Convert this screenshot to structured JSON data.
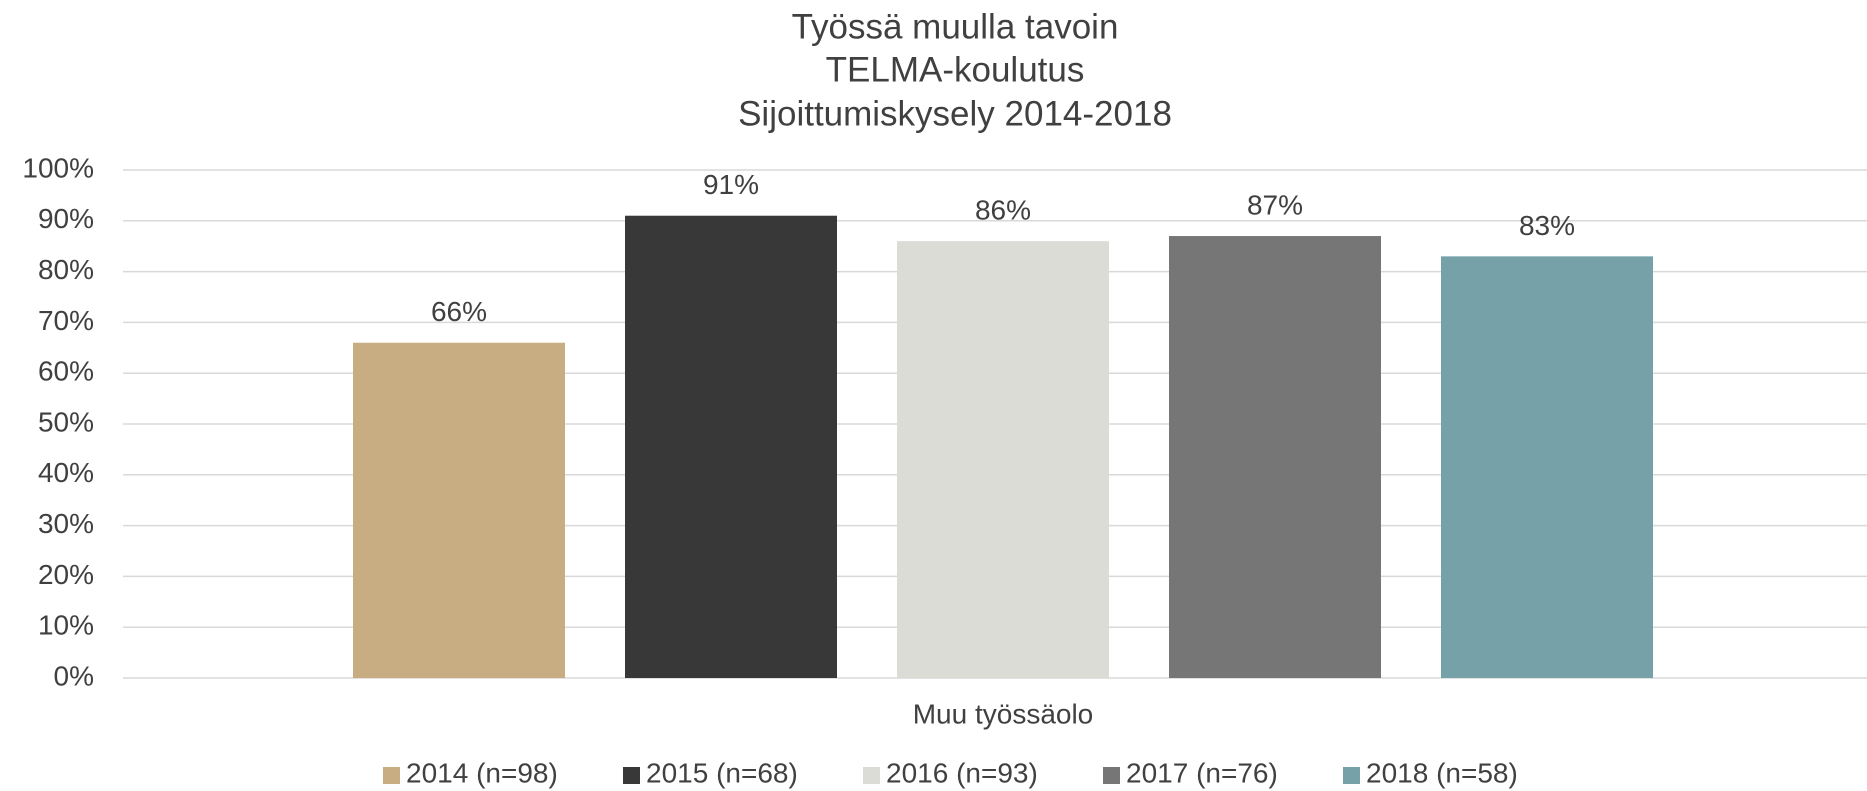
{
  "chart_data": {
    "type": "bar",
    "title": "Työssä muulla tavoin",
    "subtitle": [
      "TELMA-koulutus",
      "Sijoittumiskysely 2014-2018"
    ],
    "categories": [
      "Muu työssäolo"
    ],
    "series": [
      {
        "name": "2014 (n=98)",
        "color": "#c9ad82",
        "values": [
          66
        ],
        "value_labels": [
          "66%"
        ]
      },
      {
        "name": "2015 (n=68)",
        "color": "#383838",
        "values": [
          91
        ],
        "value_labels": [
          "91%"
        ]
      },
      {
        "name": "2016 (n=93)",
        "color": "#dcdcd7",
        "values": [
          86
        ],
        "value_labels": [
          "86%"
        ]
      },
      {
        "name": "2017 (n=76)",
        "color": "#767676",
        "values": [
          87
        ],
        "value_labels": [
          "87%"
        ]
      },
      {
        "name": "2018 (n=58)",
        "color": "#76a1a9",
        "values": [
          83
        ],
        "value_labels": [
          "83%"
        ]
      }
    ],
    "ylim": [
      0,
      100
    ],
    "yticks": [
      {
        "value": 0,
        "label": "0%"
      },
      {
        "value": 10,
        "label": "10%"
      },
      {
        "value": 20,
        "label": "20%"
      },
      {
        "value": 30,
        "label": "30%"
      },
      {
        "value": 40,
        "label": "40%"
      },
      {
        "value": 50,
        "label": "50%"
      },
      {
        "value": 60,
        "label": "60%"
      },
      {
        "value": 70,
        "label": "70%"
      },
      {
        "value": 80,
        "label": "80%"
      },
      {
        "value": 90,
        "label": "90%"
      },
      {
        "value": 100,
        "label": "100%"
      }
    ],
    "grid": true,
    "legend": "bottom"
  }
}
